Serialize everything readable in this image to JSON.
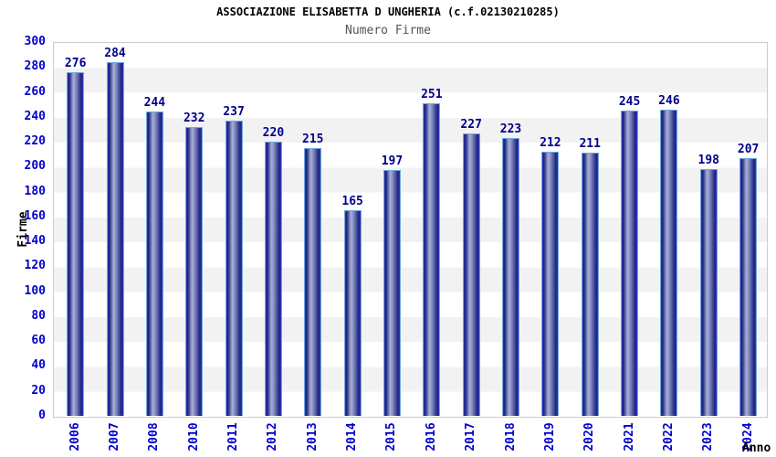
{
  "header": {
    "title": "ASSOCIAZIONE ELISABETTA D UNGHERIA (c.f.02130210285)",
    "subtitle": "Numero Firme"
  },
  "chart_data": {
    "type": "bar",
    "title": "ASSOCIAZIONE ELISABETTA D UNGHERIA (c.f.02130210285)",
    "subtitle": "Numero Firme",
    "categories": [
      "2006",
      "2007",
      "2008",
      "2010",
      "2011",
      "2012",
      "2013",
      "2014",
      "2015",
      "2016",
      "2017",
      "2018",
      "2019",
      "2020",
      "2021",
      "2022",
      "2023",
      "2024"
    ],
    "values": [
      276,
      284,
      244,
      232,
      237,
      220,
      215,
      165,
      197,
      251,
      227,
      223,
      212,
      211,
      245,
      246,
      198,
      207
    ],
    "xlabel": "Anno",
    "ylabel": "Firme",
    "ylim": [
      0,
      300
    ],
    "ytick_step": 20,
    "yticks": [
      0,
      20,
      40,
      60,
      80,
      100,
      120,
      140,
      160,
      180,
      200,
      220,
      240,
      260,
      280,
      300
    ],
    "grid": "alternating horizontal bands every 20 units",
    "legend_position": "none",
    "value_labels": "above each bar",
    "colors": {
      "bar_edge_blue": "#2737c4",
      "bar_dark": "#1d2178",
      "bar_highlight": "#a9b0d8",
      "bar_outline": "#6fa8dc",
      "tick_label": "#0000cc",
      "value_label": "#00008b",
      "band_gray": "#f2f2f2",
      "plot_border": "#cccccc",
      "title_color": "#000000",
      "subtitle_color": "#555555"
    }
  }
}
